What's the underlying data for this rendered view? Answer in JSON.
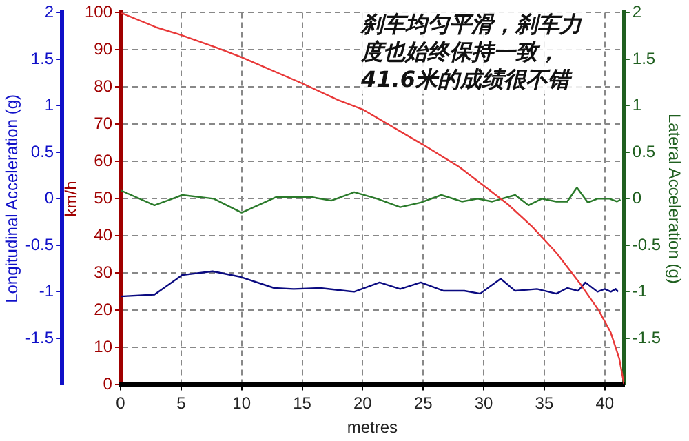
{
  "chart_data": {
    "type": "line",
    "xlabel": "metres",
    "ylabel": "km/h",
    "y2label": "Lateral Acceleration (g)",
    "y3label": "Longitudinal Acceleration (g)",
    "annotations": [
      "刹车均匀平滑，刹车力",
      "度也始终保持一致，",
      "41.6米的成绩很不错"
    ],
    "xlim": [
      0,
      41.6
    ],
    "xticks": [
      0,
      5,
      10,
      15,
      20,
      25,
      30,
      35,
      40
    ],
    "ylim": [
      0,
      100
    ],
    "yticks": [
      0,
      10,
      20,
      30,
      40,
      50,
      60,
      70,
      80,
      90,
      100
    ],
    "y2lim": [
      -2,
      2
    ],
    "y2ticks": [
      -1.5,
      -1,
      -0.5,
      0,
      0.5,
      1,
      1.5,
      2
    ],
    "y3lim": [
      -2,
      2
    ],
    "y3ticks": [
      -1.5,
      -1,
      -0.5,
      0,
      0.5,
      1,
      1.5,
      2
    ],
    "grid": true,
    "marker": "none",
    "line_style": "solid",
    "series": [
      {
        "color": "#e83838",
        "axis": "y",
        "x": [
          0,
          3,
          5,
          8,
          10,
          15,
          18,
          20,
          25,
          28,
          30,
          32,
          34,
          36,
          38,
          39.5,
          40.5,
          41.2,
          41.6
        ],
        "values": [
          100,
          96,
          94,
          90.5,
          88,
          81,
          76.5,
          74,
          64.5,
          58.5,
          53.5,
          48.5,
          42.5,
          35.5,
          27,
          20,
          14,
          7,
          0
        ]
      },
      {
        "color": "#0a0a80",
        "axis": "y3",
        "x": [
          0,
          2.8,
          5.1,
          7.6,
          9.9,
          12.7,
          14.3,
          16.5,
          19.3,
          21.4,
          23.1,
          24.8,
          26.7,
          28.4,
          29.7,
          31.4,
          32.6,
          34.4,
          36,
          36.9,
          37.8,
          38.4,
          39.4,
          40,
          40.5,
          40.9,
          41.1
        ],
        "values": [
          -1.05,
          -1.03,
          -0.82,
          -0.78,
          -0.84,
          -0.96,
          -0.97,
          -0.96,
          -1.0,
          -0.9,
          -0.97,
          -0.9,
          -0.99,
          -0.99,
          -1.02,
          -0.86,
          -0.99,
          -0.97,
          -1.02,
          -0.96,
          -0.99,
          -0.9,
          -1.0,
          -0.97,
          -1.0,
          -0.97,
          -1.0
        ]
      },
      {
        "color": "#2a7a2a",
        "axis": "y2",
        "x": [
          0,
          2.8,
          5.1,
          7.7,
          10,
          12.9,
          15.7,
          17.4,
          19.3,
          21.2,
          23.1,
          24.8,
          26.5,
          28.2,
          29.5,
          30.7,
          32.6,
          33.7,
          34.8,
          36,
          36.9,
          37.7,
          38.6,
          39.4,
          40.4,
          41,
          41.3
        ],
        "values": [
          0.09,
          -0.07,
          0.04,
          0.0,
          -0.15,
          0.02,
          0.02,
          -0.02,
          0.07,
          0.0,
          -0.09,
          -0.04,
          0.04,
          -0.03,
          0.0,
          -0.03,
          0.04,
          -0.07,
          0.0,
          -0.03,
          -0.03,
          0.12,
          -0.04,
          0.0,
          0.0,
          -0.03,
          -0.01
        ]
      }
    ]
  }
}
